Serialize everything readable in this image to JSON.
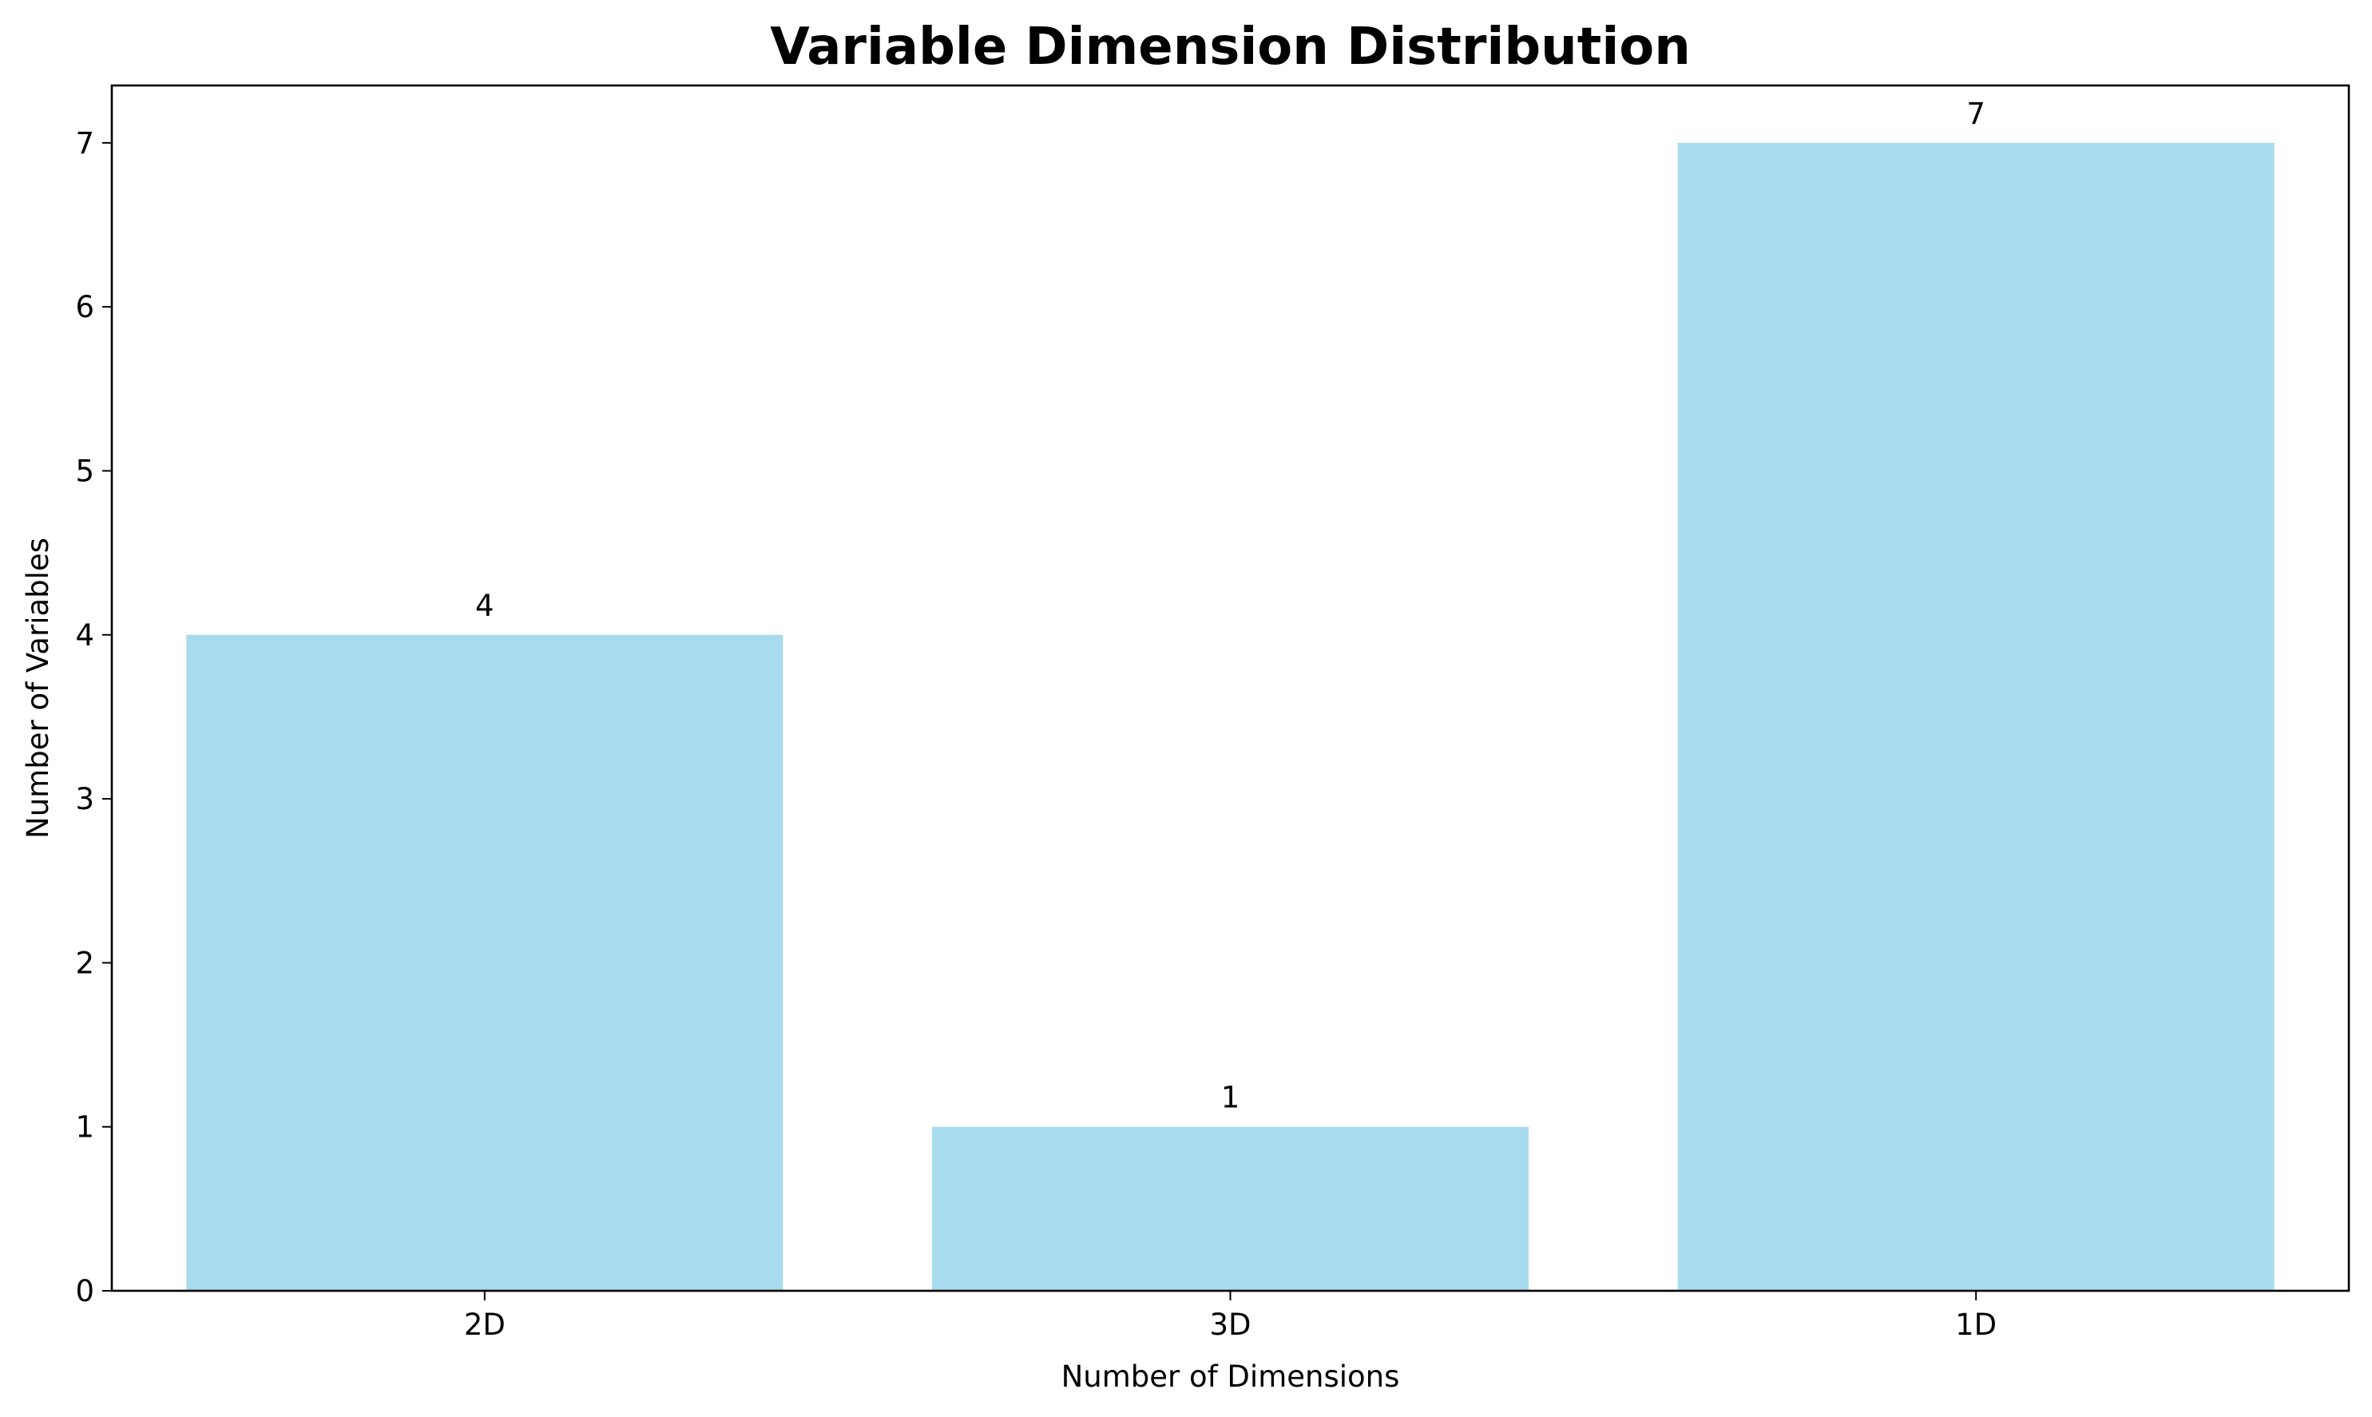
{
  "chart_data": {
    "type": "bar",
    "title": "Variable Dimension Distribution",
    "xlabel": "Number of Dimensions",
    "ylabel": "Number of Variables",
    "categories": [
      "2D",
      "3D",
      "1D"
    ],
    "values": [
      4,
      1,
      7
    ],
    "data_labels": [
      "4",
      "1",
      "7"
    ],
    "ylim": [
      0,
      7.35
    ],
    "yticks": [
      0,
      1,
      2,
      3,
      4,
      5,
      6,
      7
    ],
    "ytick_labels": [
      "0",
      "1",
      "2",
      "3",
      "4",
      "5",
      "6",
      "7"
    ],
    "grid": false,
    "legend": "none",
    "bar_color": "#a8dbed",
    "axis_color": "#000000"
  }
}
